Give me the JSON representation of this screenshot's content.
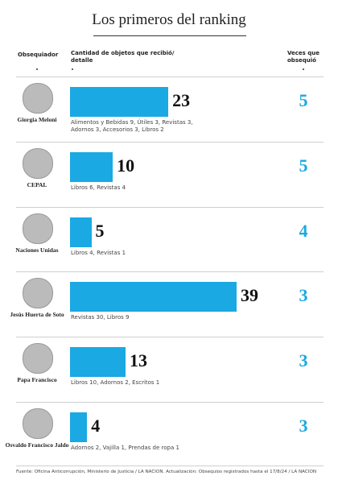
{
  "chart_data": {
    "type": "bar",
    "title": "Los primeros del ranking",
    "headers": [
      "Obsequiador",
      "Cantidad de objetos que recibió/ detalle",
      "Veces que obsequió"
    ],
    "categories": [
      "Giorgia Meloni",
      "CEPAL",
      "Naciones Unidas",
      "Jesús Huerta de Soto",
      "Papa Francisco",
      "Osvaldo Francisco Jaldo"
    ],
    "values": [
      23,
      10,
      5,
      39,
      13,
      4
    ],
    "details": [
      "Alimentos y Bebidas 9, Útiles 3, Revistas 3, Adornos 3, Accesorios 3, Libros 2",
      "Libros 6, Revistas 4",
      "Libros 4, Revistas 1",
      "Revistas 30, Libros 9",
      "Libros 10, Adornos 2, Escritos 1",
      "Adornos 2, Vajilla 1, Prendas de ropa 1"
    ],
    "times": [
      5,
      5,
      4,
      3,
      3,
      3
    ],
    "color": "#1aa9e3",
    "source": "Fuente: Oficina Anticorrupción, Ministerio de Justicia / LA NACION. Actualización: Obsequios registrados hasta el 17/8/24 / LA NACION"
  }
}
